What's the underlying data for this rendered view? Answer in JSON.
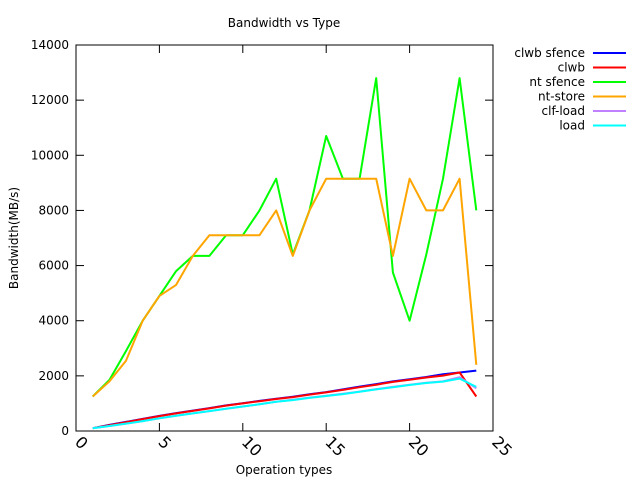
{
  "chart_data": {
    "type": "line",
    "title": "Bandwidth vs Type",
    "xlabel": "Operation types",
    "ylabel": "Bandwidth(MB/s)",
    "xlim": [
      0,
      25
    ],
    "ylim": [
      0,
      14000
    ],
    "xticks": [
      0,
      5,
      10,
      15,
      20,
      25
    ],
    "yticks": [
      0,
      2000,
      4000,
      6000,
      8000,
      10000,
      12000,
      14000
    ],
    "grid": false,
    "legend_position": "outside-top-right",
    "x": [
      1,
      2,
      3,
      4,
      5,
      6,
      7,
      8,
      9,
      10,
      11,
      12,
      13,
      14,
      15,
      16,
      17,
      18,
      19,
      20,
      21,
      22,
      23,
      24
    ],
    "series": [
      {
        "name": "clwb sfence",
        "color": "#0000ff",
        "values": [
          100,
          220,
          330,
          440,
          550,
          650,
          740,
          830,
          930,
          1010,
          1090,
          1170,
          1240,
          1330,
          1410,
          1510,
          1610,
          1700,
          1800,
          1880,
          1960,
          2060,
          2120,
          2190
        ]
      },
      {
        "name": "clwb",
        "color": "#ff0000",
        "values": [
          100,
          210,
          320,
          430,
          540,
          640,
          730,
          820,
          920,
          1000,
          1080,
          1160,
          1230,
          1320,
          1400,
          1490,
          1590,
          1680,
          1780,
          1860,
          1940,
          2010,
          2120,
          1250
        ]
      },
      {
        "name": "nt sfence",
        "color": "#00ff00",
        "values": [
          1250,
          1850,
          2900,
          4000,
          4900,
          5800,
          6350,
          6350,
          7100,
          7100,
          8000,
          9150,
          6400,
          8000,
          10700,
          9150,
          9150,
          12800,
          5750,
          4000,
          6400,
          9150,
          12800,
          8000
        ]
      },
      {
        "name": "nt-store",
        "color": "#ffa500",
        "values": [
          1250,
          1800,
          2550,
          4000,
          4900,
          5300,
          6350,
          7100,
          7100,
          7100,
          7100,
          8000,
          6350,
          8000,
          9150,
          9150,
          9150,
          9150,
          6350,
          9150,
          8000,
          8000,
          9150,
          2400
        ]
      },
      {
        "name": "clf-load",
        "color": "#c080ff",
        "values": [
          100,
          180,
          270,
          360,
          460,
          550,
          640,
          720,
          810,
          890,
          970,
          1060,
          1130,
          1210,
          1280,
          1350,
          1430,
          1520,
          1600,
          1680,
          1750,
          1800,
          1950,
          1550
        ]
      },
      {
        "name": "load",
        "color": "#00ffff",
        "values": [
          100,
          180,
          270,
          360,
          460,
          550,
          640,
          720,
          810,
          890,
          970,
          1060,
          1120,
          1200,
          1270,
          1340,
          1420,
          1510,
          1590,
          1670,
          1740,
          1790,
          1900,
          1600
        ]
      }
    ]
  }
}
